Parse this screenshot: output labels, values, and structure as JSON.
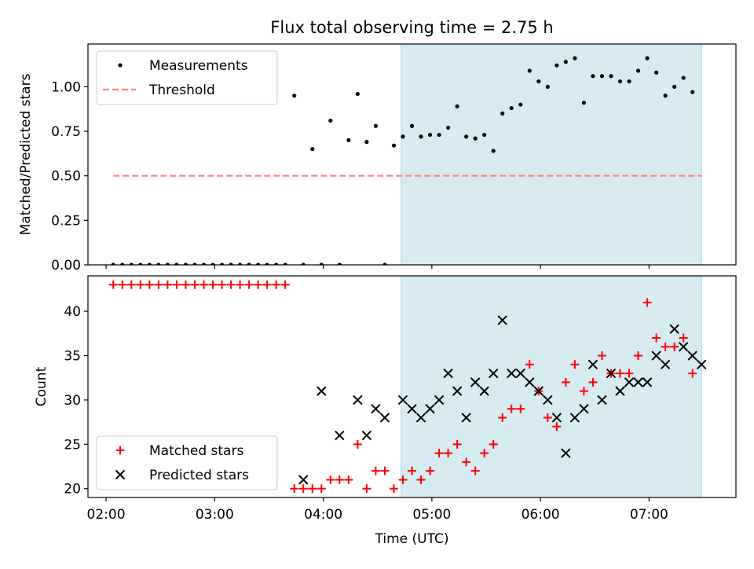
{
  "chart_data": [
    {
      "type": "scatter",
      "title": "Flux total observing time = 2.75 h",
      "xlabel": "",
      "ylabel": "Matched/Predicted stars",
      "xlim": [
        "01:50",
        "07:48"
      ],
      "ylim": [
        0,
        1.24
      ],
      "grid": false,
      "legend_position": "top-left",
      "yticks": [
        0,
        0.25,
        0.5,
        0.75,
        1.0
      ],
      "ytick_labels": [
        "0.00",
        "0.25",
        "0.50",
        "0.75",
        "1.00"
      ],
      "shaded_region": {
        "from": "04:43",
        "to": "07:29",
        "color": "#add8e6"
      },
      "series": [
        {
          "name": "Measurements",
          "marker": "dot",
          "color": "#000000",
          "x": [
            "02:04",
            "02:09",
            "02:14",
            "02:19",
            "02:24",
            "02:29",
            "02:34",
            "02:39",
            "02:44",
            "02:49",
            "02:54",
            "02:59",
            "03:04",
            "03:09",
            "03:14",
            "03:19",
            "03:24",
            "03:29",
            "03:34",
            "03:39",
            "03:44",
            "03:49",
            "03:54",
            "03:59",
            "04:04",
            "04:09",
            "04:14",
            "04:19",
            "04:24",
            "04:29",
            "04:34",
            "04:39",
            "04:44",
            "04:49",
            "04:54",
            "04:59",
            "05:04",
            "05:09",
            "05:14",
            "05:19",
            "05:24",
            "05:29",
            "05:34",
            "05:39",
            "05:44",
            "05:49",
            "05:54",
            "05:59",
            "06:04",
            "06:09",
            "06:14",
            "06:19",
            "06:24",
            "06:29",
            "06:34",
            "06:39",
            "06:44",
            "06:49",
            "06:54",
            "06:59",
            "07:04",
            "07:09",
            "07:14",
            "07:19",
            "07:24",
            "07:29"
          ],
          "y": [
            0,
            0,
            0,
            0,
            0,
            0,
            0,
            0,
            0,
            0,
            0,
            0,
            0,
            0,
            0,
            0,
            0,
            0,
            0,
            0,
            0.95,
            0,
            0.65,
            0,
            0.81,
            0,
            0.7,
            0.96,
            0.69,
            0.78,
            0,
            0.67,
            0.72,
            0.78,
            0.72,
            0.73,
            0.73,
            0.77,
            0.89,
            0.72,
            0.71,
            0.73,
            0.64,
            0.85,
            0.88,
            0.9,
            1.09,
            1.03,
            1.0,
            1.12,
            1.14,
            1.16,
            0.91,
            1.06,
            1.06,
            1.06,
            1.03,
            1.03,
            1.09,
            1.16,
            1.08,
            0.95,
            1.0,
            1.05,
            0.97,
            null
          ]
        },
        {
          "name": "Threshold",
          "line_style": "dashed",
          "color": "#ff7f7f",
          "x": [
            "02:04",
            "07:29"
          ],
          "y": [
            0.5,
            0.5
          ]
        }
      ]
    },
    {
      "type": "scatter",
      "title": "",
      "xlabel": "Time (UTC)",
      "ylabel": "Count",
      "xlim": [
        "01:50",
        "07:48"
      ],
      "ylim": [
        19.0,
        44.0
      ],
      "grid": false,
      "legend_position": "bottom-left",
      "xticks": [
        "02:00",
        "03:00",
        "04:00",
        "05:00",
        "06:00",
        "07:00"
      ],
      "yticks": [
        20,
        25,
        30,
        35,
        40
      ],
      "ytick_labels": [
        "20",
        "25",
        "30",
        "35",
        "40"
      ],
      "shaded_region": {
        "from": "04:43",
        "to": "07:29",
        "color": "#add8e6"
      },
      "series": [
        {
          "name": "Matched stars",
          "marker": "plus",
          "color": "#ff0000",
          "x": [
            "02:04",
            "02:09",
            "02:14",
            "02:19",
            "02:24",
            "02:29",
            "02:34",
            "02:39",
            "02:44",
            "02:49",
            "02:54",
            "02:59",
            "03:04",
            "03:09",
            "03:14",
            "03:19",
            "03:24",
            "03:29",
            "03:34",
            "03:39",
            "03:44",
            "03:49",
            "03:54",
            "03:59",
            "04:04",
            "04:09",
            "04:14",
            "04:19",
            "04:24",
            "04:29",
            "04:34",
            "04:39",
            "04:44",
            "04:49",
            "04:54",
            "04:59",
            "05:04",
            "05:09",
            "05:14",
            "05:19",
            "05:24",
            "05:29",
            "05:34",
            "05:39",
            "05:44",
            "05:49",
            "05:54",
            "05:59",
            "06:04",
            "06:09",
            "06:14",
            "06:19",
            "06:24",
            "06:29",
            "06:34",
            "06:39",
            "06:44",
            "06:49",
            "06:54",
            "06:59",
            "07:04",
            "07:09",
            "07:14",
            "07:19",
            "07:24",
            "07:29"
          ],
          "y": [
            43,
            43,
            43,
            43,
            43,
            43,
            43,
            43,
            43,
            43,
            43,
            43,
            43,
            43,
            43,
            43,
            43,
            43,
            43,
            43,
            20,
            20,
            20,
            20,
            21,
            21,
            21,
            25,
            20,
            22,
            22,
            20,
            21,
            22,
            21,
            22,
            24,
            24,
            25,
            23,
            22,
            24,
            25,
            28,
            29,
            29,
            34,
            31,
            28,
            27,
            32,
            34,
            31,
            32,
            35,
            33,
            33,
            33,
            35,
            41,
            37,
            36,
            36,
            37,
            33,
            null
          ]
        },
        {
          "name": "Predicted stars",
          "marker": "x",
          "color": "#000000",
          "x": [
            "03:49",
            "03:59",
            "04:09",
            "04:19",
            "04:24",
            "04:29",
            "04:34",
            "04:44",
            "04:49",
            "04:54",
            "04:59",
            "05:04",
            "05:09",
            "05:14",
            "05:19",
            "05:24",
            "05:29",
            "05:34",
            "05:39",
            "05:44",
            "05:49",
            "05:54",
            "05:59",
            "06:04",
            "06:09",
            "06:14",
            "06:19",
            "06:24",
            "06:29",
            "06:34",
            "06:39",
            "06:44",
            "06:49",
            "06:54",
            "06:59",
            "07:04",
            "07:09",
            "07:14",
            "07:19",
            "07:24",
            "07:29"
          ],
          "y": [
            21,
            31,
            26,
            30,
            26,
            29,
            28,
            30,
            29,
            28,
            29,
            30,
            33,
            31,
            28,
            32,
            31,
            33,
            39,
            33,
            33,
            32,
            31,
            30,
            28,
            24,
            28,
            29,
            34,
            30,
            33,
            31,
            32,
            32,
            32,
            35,
            34,
            38,
            36,
            35,
            34
          ]
        }
      ]
    }
  ]
}
